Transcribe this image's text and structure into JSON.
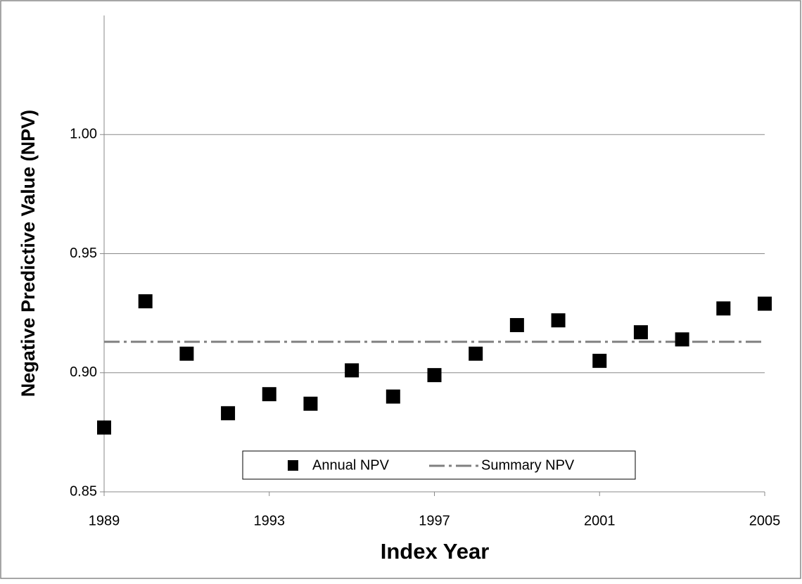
{
  "chart_data": {
    "type": "scatter",
    "x_label": "Index Year",
    "y_label": "Negative Predictive Value (NPV)",
    "x": [
      1989,
      1990,
      1991,
      1992,
      1993,
      1994,
      1995,
      1996,
      1997,
      1998,
      1999,
      2000,
      2001,
      2002,
      2003,
      2004,
      2005
    ],
    "series": [
      {
        "name": "Annual NPV",
        "color": "#000000",
        "values": [
          0.877,
          0.93,
          0.908,
          0.883,
          0.891,
          0.887,
          0.901,
          0.89,
          0.899,
          0.908,
          0.92,
          0.922,
          0.905,
          0.917,
          0.914,
          0.927,
          0.929
        ]
      }
    ],
    "reference_line": {
      "name": "Summary NPV",
      "value": 0.913,
      "color": "#808080"
    },
    "xlim": [
      1989,
      2005
    ],
    "xticks": [
      1989,
      1993,
      1997,
      2001,
      2005
    ],
    "ylim": [
      0.85,
      1.05
    ],
    "yticks": [
      0.85,
      {
        "value": 0.9,
        "label": "0.90"
      },
      0.95,
      {
        "value": 1.0,
        "label": "1.00"
      }
    ],
    "grid": true,
    "legend": "bottom"
  }
}
